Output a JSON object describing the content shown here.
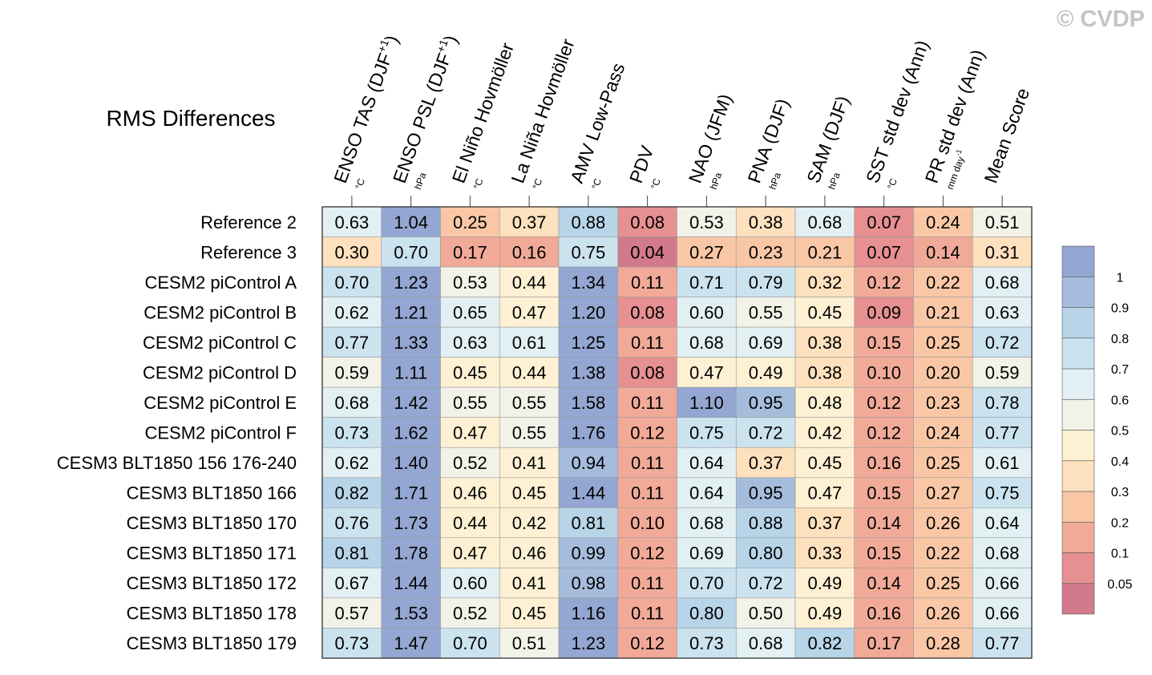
{
  "watermark": "© CVDP",
  "chart_data": {
    "type": "heatmap",
    "title": "RMS Differences",
    "columns": [
      {
        "label": "ENSO TAS (DJF",
        "sup": "+1",
        "close": ")",
        "unit": "°C"
      },
      {
        "label": "ENSO PSL (DJF",
        "sup": "+1",
        "close": ")",
        "unit": "hPa"
      },
      {
        "label": "El Niño Hovmöller",
        "sup": "",
        "close": "",
        "unit": "°C"
      },
      {
        "label": "La Niña Hovmöller",
        "sup": "",
        "close": "",
        "unit": "°C"
      },
      {
        "label": "AMV Low-Pass",
        "sup": "",
        "close": "",
        "unit": "°C"
      },
      {
        "label": "PDV",
        "sup": "",
        "close": "",
        "unit": "°C"
      },
      {
        "label": "NAO (JFM)",
        "sup": "",
        "close": "",
        "unit": "hPa"
      },
      {
        "label": "PNA (DJF)",
        "sup": "",
        "close": "",
        "unit": "hPa"
      },
      {
        "label": "SAM (DJF)",
        "sup": "",
        "close": "",
        "unit": "hPa"
      },
      {
        "label": "SST std dev (Ann)",
        "sup": "",
        "close": "",
        "unit": "°C"
      },
      {
        "label": "PR std dev (Ann)",
        "sup": "",
        "close": "",
        "unit": "mm day",
        "unit_sup": "-1"
      },
      {
        "label": "Mean Score",
        "sup": "",
        "close": "",
        "unit": ""
      }
    ],
    "rows": [
      "Reference 2",
      "Reference 3",
      "CESM2 piControl A",
      "CESM2 piControl B",
      "CESM2 piControl C",
      "CESM2 piControl D",
      "CESM2 piControl E",
      "CESM2 piControl F",
      "CESM3 BLT1850 156 176-240",
      "CESM3 BLT1850 166",
      "CESM3 BLT1850 170",
      "CESM3 BLT1850 171",
      "CESM3 BLT1850 172",
      "CESM3 BLT1850 178",
      "CESM3 BLT1850 179"
    ],
    "values": [
      [
        0.63,
        1.04,
        0.25,
        0.37,
        0.88,
        0.08,
        0.53,
        0.38,
        0.68,
        0.07,
        0.24,
        0.51
      ],
      [
        0.3,
        0.7,
        0.17,
        0.16,
        0.75,
        0.04,
        0.27,
        0.23,
        0.21,
        0.07,
        0.14,
        0.31
      ],
      [
        0.7,
        1.23,
        0.53,
        0.44,
        1.34,
        0.11,
        0.71,
        0.79,
        0.32,
        0.12,
        0.22,
        0.68
      ],
      [
        0.62,
        1.21,
        0.65,
        0.47,
        1.2,
        0.08,
        0.6,
        0.55,
        0.45,
        0.09,
        0.21,
        0.63
      ],
      [
        0.77,
        1.33,
        0.63,
        0.61,
        1.25,
        0.11,
        0.68,
        0.69,
        0.38,
        0.15,
        0.25,
        0.72
      ],
      [
        0.59,
        1.11,
        0.45,
        0.44,
        1.38,
        0.08,
        0.47,
        0.49,
        0.38,
        0.1,
        0.2,
        0.59
      ],
      [
        0.68,
        1.42,
        0.55,
        0.55,
        1.58,
        0.11,
        1.1,
        0.95,
        0.48,
        0.12,
        0.23,
        0.78
      ],
      [
        0.73,
        1.62,
        0.47,
        0.55,
        1.76,
        0.12,
        0.75,
        0.72,
        0.42,
        0.12,
        0.24,
        0.77
      ],
      [
        0.62,
        1.4,
        0.52,
        0.41,
        0.94,
        0.11,
        0.64,
        0.37,
        0.45,
        0.16,
        0.25,
        0.61
      ],
      [
        0.82,
        1.71,
        0.46,
        0.45,
        1.44,
        0.11,
        0.64,
        0.95,
        0.47,
        0.15,
        0.27,
        0.75
      ],
      [
        0.76,
        1.73,
        0.44,
        0.42,
        0.81,
        0.1,
        0.68,
        0.88,
        0.37,
        0.14,
        0.26,
        0.64
      ],
      [
        0.81,
        1.78,
        0.47,
        0.46,
        0.99,
        0.12,
        0.69,
        0.8,
        0.33,
        0.15,
        0.22,
        0.68
      ],
      [
        0.67,
        1.44,
        0.6,
        0.41,
        0.98,
        0.11,
        0.7,
        0.72,
        0.49,
        0.14,
        0.25,
        0.66
      ],
      [
        0.57,
        1.53,
        0.52,
        0.45,
        1.16,
        0.11,
        0.8,
        0.5,
        0.49,
        0.16,
        0.26,
        0.66
      ],
      [
        0.73,
        1.47,
        0.7,
        0.51,
        1.23,
        0.12,
        0.73,
        0.68,
        0.82,
        0.17,
        0.28,
        0.77
      ]
    ],
    "colorbar": {
      "boundaries": [
        0,
        0.05,
        0.1,
        0.2,
        0.3,
        0.4,
        0.5,
        0.6,
        0.7,
        0.8,
        0.9,
        1.0,
        99
      ],
      "colors": [
        "#d27a8c",
        "#e69091",
        "#f2aa98",
        "#f9c7a6",
        "#fde0bd",
        "#fdf0d3",
        "#f2f2e8",
        "#e2eff3",
        "#cbe3ef",
        "#b7d4e8",
        "#a5bcdc",
        "#94a7d2"
      ],
      "tick_labels": [
        "0.05",
        "0.1",
        "0.2",
        "0.3",
        "0.4",
        "0.5",
        "0.6",
        "0.7",
        "0.8",
        "0.9",
        "1"
      ]
    }
  }
}
